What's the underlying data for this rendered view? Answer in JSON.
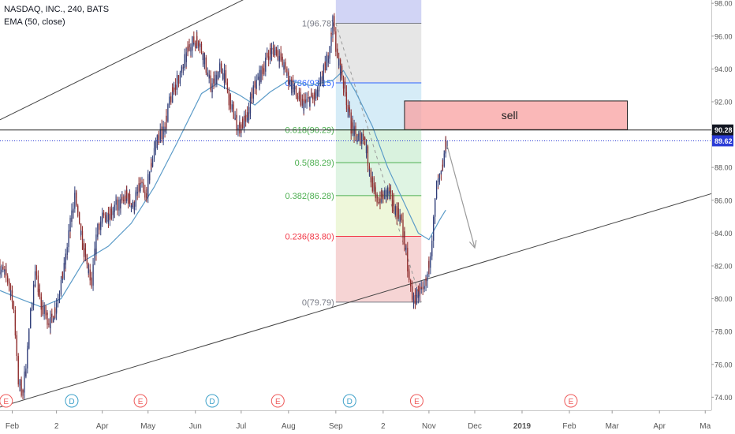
{
  "legend": {
    "symbol": "NASDAQ, INC., 240, BATS",
    "indicator": "EMA (50, close)"
  },
  "chart_data": {
    "type": "candlestick",
    "price_axis": {
      "ticks": [
        74.0,
        76.0,
        78.0,
        80.0,
        82.0,
        84.0,
        86.0,
        88.0,
        90.0,
        92.0,
        94.0,
        96.0,
        98.0
      ],
      "tick_labels": [
        "74.00",
        "76.00",
        "78.00",
        "80.00",
        "82.00",
        "84.00",
        "86.00",
        "88.00",
        "90.00",
        "92.00",
        "94.00",
        "96.00",
        "98.00"
      ],
      "range": [
        73.2,
        98.2
      ]
    },
    "time_axis": {
      "labels": [
        {
          "t": "2018-02-01",
          "label": "Feb"
        },
        {
          "t": "2018-03-02",
          "label": "2"
        },
        {
          "t": "2018-04-01",
          "label": "Apr"
        },
        {
          "t": "2018-05-01",
          "label": "May"
        },
        {
          "t": "2018-06-01",
          "label": "Jun"
        },
        {
          "t": "2018-07-01",
          "label": "Jul"
        },
        {
          "t": "2018-08-01",
          "label": "Aug"
        },
        {
          "t": "2018-09-01",
          "label": "Sep"
        },
        {
          "t": "2018-10-02",
          "label": "2"
        },
        {
          "t": "2018-11-01",
          "label": "Nov"
        },
        {
          "t": "2018-12-01",
          "label": "Dec"
        },
        {
          "t": "2019-01-01",
          "label": "2019"
        },
        {
          "t": "2019-02-01",
          "label": "Feb"
        },
        {
          "t": "2019-03-01",
          "label": "Mar"
        },
        {
          "t": "2019-04-01",
          "label": "Apr"
        },
        {
          "t": "2019-05-01",
          "label": "Ma"
        }
      ],
      "range": [
        "2018-01-24",
        "2019-05-05"
      ]
    },
    "price_path": [
      [
        "2018-01-24",
        82.0
      ],
      [
        "2018-01-30",
        81.2
      ],
      [
        "2018-02-03",
        79.5
      ],
      [
        "2018-02-06",
        75.0
      ],
      [
        "2018-02-09",
        74.2
      ],
      [
        "2018-02-13",
        78.2
      ],
      [
        "2018-02-17",
        81.5
      ],
      [
        "2018-02-21",
        79.5
      ],
      [
        "2018-02-27",
        78.5
      ],
      [
        "2018-03-03",
        79.8
      ],
      [
        "2018-03-08",
        81.8
      ],
      [
        "2018-03-12",
        84.5
      ],
      [
        "2018-03-15",
        86.5
      ],
      [
        "2018-03-18",
        84.2
      ],
      [
        "2018-03-23",
        82.0
      ],
      [
        "2018-03-26",
        80.8
      ],
      [
        "2018-03-30",
        84.5
      ],
      [
        "2018-04-04",
        85.0
      ],
      [
        "2018-04-09",
        85.5
      ],
      [
        "2018-04-14",
        85.8
      ],
      [
        "2018-04-18",
        86.3
      ],
      [
        "2018-04-22",
        85.6
      ],
      [
        "2018-04-27",
        87.0
      ],
      [
        "2018-04-30",
        86.0
      ],
      [
        "2018-05-03",
        87.8
      ],
      [
        "2018-05-07",
        89.5
      ],
      [
        "2018-05-12",
        90.3
      ],
      [
        "2018-05-15",
        91.5
      ],
      [
        "2018-05-19",
        93.0
      ],
      [
        "2018-05-24",
        93.8
      ],
      [
        "2018-05-29",
        95.5
      ],
      [
        "2018-06-04",
        95.8
      ],
      [
        "2018-06-08",
        94.5
      ],
      [
        "2018-06-12",
        92.8
      ],
      [
        "2018-06-18",
        94.0
      ],
      [
        "2018-06-21",
        93.5
      ],
      [
        "2018-06-25",
        91.8
      ],
      [
        "2018-06-30",
        90.4
      ],
      [
        "2018-07-06",
        91.0
      ],
      [
        "2018-07-10",
        92.8
      ],
      [
        "2018-07-14",
        93.5
      ],
      [
        "2018-07-20",
        95.0
      ],
      [
        "2018-07-25",
        95.2
      ],
      [
        "2018-07-29",
        94.3
      ],
      [
        "2018-08-03",
        93.2
      ],
      [
        "2018-08-08",
        92.2
      ],
      [
        "2018-08-12",
        91.8
      ],
      [
        "2018-08-16",
        92.2
      ],
      [
        "2018-08-20",
        92.3
      ],
      [
        "2018-08-24",
        93.5
      ],
      [
        "2018-08-27",
        94.5
      ],
      [
        "2018-08-31",
        96.78
      ],
      [
        "2018-09-03",
        94.5
      ],
      [
        "2018-09-06",
        93.6
      ],
      [
        "2018-09-09",
        92.0
      ],
      [
        "2018-09-12",
        90.5
      ],
      [
        "2018-09-16",
        89.7
      ],
      [
        "2018-09-20",
        90.0
      ],
      [
        "2018-09-24",
        87.8
      ],
      [
        "2018-09-28",
        86.0
      ],
      [
        "2018-10-02",
        86.2
      ],
      [
        "2018-10-06",
        86.5
      ],
      [
        "2018-10-10",
        85.6
      ],
      [
        "2018-10-14",
        85.0
      ],
      [
        "2018-10-17",
        83.5
      ],
      [
        "2018-10-20",
        81.0
      ],
      [
        "2018-10-23",
        79.79
      ],
      [
        "2018-10-26",
        80.5
      ],
      [
        "2018-10-29",
        80.2
      ],
      [
        "2018-11-01",
        81.5
      ],
      [
        "2018-11-04",
        83.8
      ],
      [
        "2018-11-07",
        86.8
      ],
      [
        "2018-11-10",
        87.5
      ],
      [
        "2018-11-13",
        89.62
      ]
    ],
    "ema_path": [
      [
        "2018-01-24",
        80.5
      ],
      [
        "2018-02-06",
        80.0
      ],
      [
        "2018-02-20",
        79.5
      ],
      [
        "2018-03-05",
        80.0
      ],
      [
        "2018-03-20",
        82.3
      ],
      [
        "2018-04-05",
        83.2
      ],
      [
        "2018-04-20",
        84.6
      ],
      [
        "2018-05-05",
        86.8
      ],
      [
        "2018-05-20",
        89.5
      ],
      [
        "2018-06-05",
        92.5
      ],
      [
        "2018-06-15",
        93.1
      ],
      [
        "2018-06-30",
        92.4
      ],
      [
        "2018-07-10",
        91.8
      ],
      [
        "2018-07-20",
        92.6
      ],
      [
        "2018-08-01",
        93.3
      ],
      [
        "2018-08-15",
        93.0
      ],
      [
        "2018-08-30",
        93.3
      ],
      [
        "2018-09-06",
        93.9
      ],
      [
        "2018-09-14",
        92.6
      ],
      [
        "2018-09-25",
        90.5
      ],
      [
        "2018-10-05",
        88.0
      ],
      [
        "2018-10-15",
        86.0
      ],
      [
        "2018-10-25",
        84.0
      ],
      [
        "2018-11-01",
        83.6
      ],
      [
        "2018-11-08",
        84.8
      ],
      [
        "2018-11-12",
        85.4
      ]
    ],
    "horizontal_line": {
      "price": 90.28,
      "label": "90.28"
    },
    "last_price": {
      "price": 89.62,
      "label": "89.62"
    },
    "trend_lines": [
      {
        "from": [
          "2018-01-24",
          90.9
        ],
        "to": [
          "2018-09-01",
          101.0
        ]
      },
      {
        "from": [
          "2018-01-24",
          73.4
        ],
        "to": [
          "2019-05-05",
          86.4
        ]
      }
    ],
    "fibonacci": {
      "from_time": "2018-09-01",
      "to_time": "2018-10-27",
      "top_band_price": 98.2,
      "levels": [
        {
          "ratio": "1",
          "price": 96.78,
          "label": "1(96.78)",
          "color": "#787b86"
        },
        {
          "ratio": "0.786",
          "price": 93.15,
          "label": "0.786(93.15)",
          "color": "#2962ff"
        },
        {
          "ratio": "0.618",
          "price": 90.29,
          "label": "0.618(90.29)",
          "color": "#4caf50"
        },
        {
          "ratio": "0.5",
          "price": 88.29,
          "label": "0.5(88.29)",
          "color": "#4caf50"
        },
        {
          "ratio": "0.382",
          "price": 86.28,
          "label": "0.382(86.28)",
          "color": "#4caf50"
        },
        {
          "ratio": "0.236",
          "price": 83.8,
          "label": "0.236(83.80)",
          "color": "#f23645"
        },
        {
          "ratio": "0",
          "price": 79.79,
          "label": "0(79.79)",
          "color": "#787b86"
        }
      ],
      "fills": [
        "#d1d4f5",
        "#e6e6e6",
        "#d6ecf7",
        "#d9f2de",
        "#dff4e3",
        "#eef7da",
        "#f6d4d4"
      ]
    },
    "sell_zone": {
      "label": "sell",
      "from_time": "2018-10-16",
      "to_time": "2019-03-11",
      "low": 90.3,
      "high": 92.05
    },
    "projection_arrow": {
      "from": [
        "2018-11-13",
        89.3
      ],
      "to": [
        "2018-12-01",
        83.1
      ]
    },
    "fib_dashed_line": {
      "from": [
        "2018-09-01",
        96.78
      ],
      "to": [
        "2018-10-27",
        79.79
      ]
    },
    "events": [
      {
        "t": "2018-01-28",
        "type": "E"
      },
      {
        "t": "2018-03-12",
        "type": "D"
      },
      {
        "t": "2018-04-26",
        "type": "E"
      },
      {
        "t": "2018-06-12",
        "type": "D"
      },
      {
        "t": "2018-07-25",
        "type": "E"
      },
      {
        "t": "2018-09-10",
        "type": "D"
      },
      {
        "t": "2018-10-24",
        "type": "E"
      },
      {
        "t": "2019-02-02",
        "type": "E"
      }
    ],
    "colors": {
      "up_candle": "#2f3d78",
      "down_candle": "#8e2b2b",
      "ema": "#5b9bc8",
      "trend": "#444444",
      "event_e": "#ee5a5a",
      "event_d": "#3da0c9"
    }
  }
}
